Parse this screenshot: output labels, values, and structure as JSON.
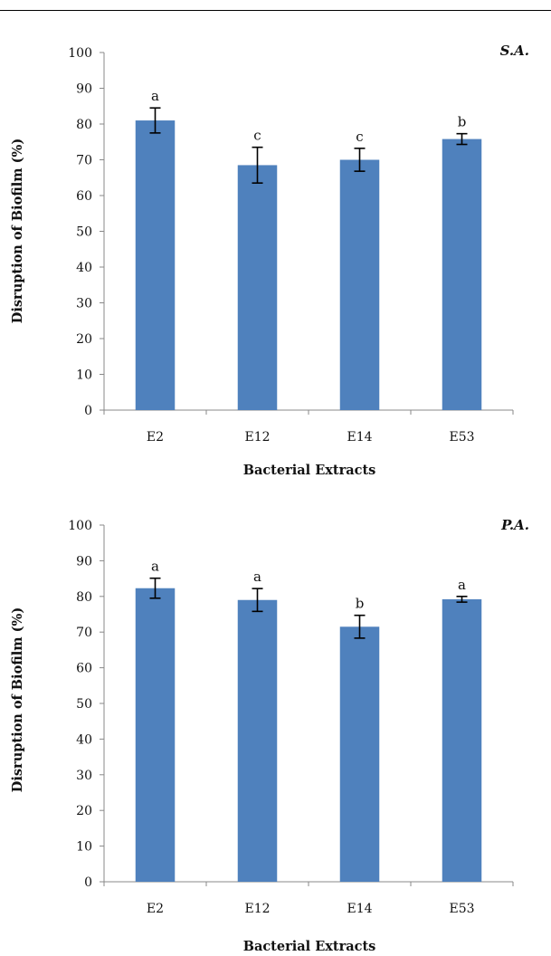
{
  "chart_data": [
    {
      "type": "bar",
      "panel_label": "S.A.",
      "categories": [
        "E2",
        "E12",
        "E14",
        "E53"
      ],
      "values": [
        81,
        68.5,
        70,
        75.8
      ],
      "errors": [
        3.5,
        5,
        3.2,
        1.5
      ],
      "significance_labels": [
        "a",
        "c",
        "c",
        "b"
      ],
      "xlabel": "Bacterial Extracts",
      "ylabel": "Disruption of Biofilm (%)",
      "ylim": [
        0,
        100
      ],
      "yticks": [
        0,
        10,
        20,
        30,
        40,
        50,
        60,
        70,
        80,
        90,
        100
      ],
      "bar_color": "#4f81bd",
      "grid": false
    },
    {
      "type": "bar",
      "panel_label": "P.A.",
      "categories": [
        "E2",
        "E12",
        "E14",
        "E53"
      ],
      "values": [
        82.3,
        79,
        71.5,
        79.2
      ],
      "errors": [
        2.8,
        3.2,
        3.2,
        0.8
      ],
      "significance_labels": [
        "a",
        "a",
        "b",
        "a"
      ],
      "xlabel": "Bacterial Extracts",
      "ylabel": "Disruption of Biofilm (%)",
      "ylim": [
        0,
        100
      ],
      "yticks": [
        0,
        10,
        20,
        30,
        40,
        50,
        60,
        70,
        80,
        90,
        100
      ],
      "bar_color": "#4f81bd",
      "grid": false
    }
  ]
}
